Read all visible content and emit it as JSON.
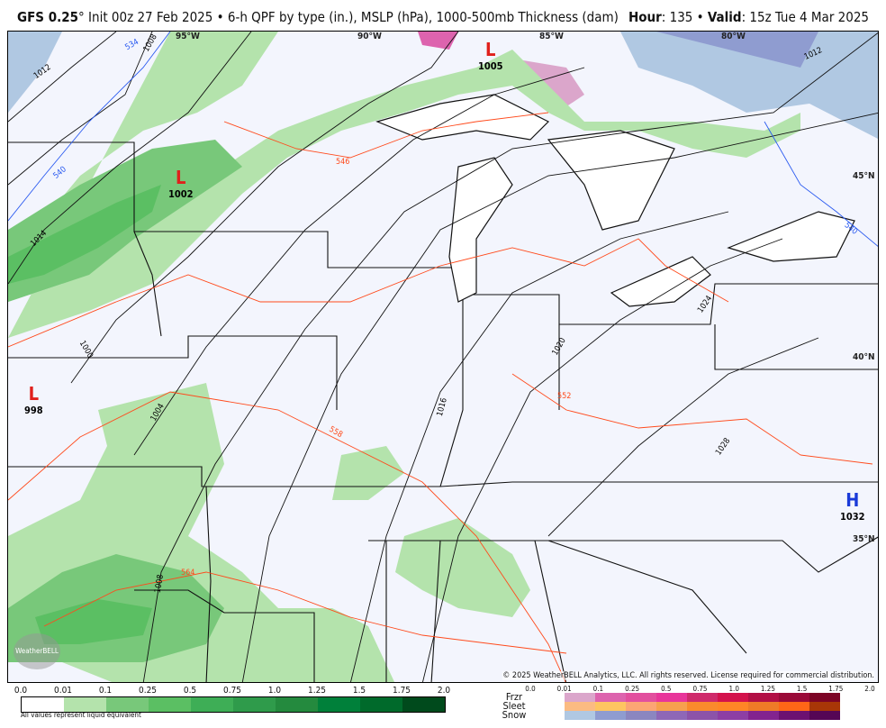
{
  "header": {
    "model": "GFS 0.25",
    "degree": "°",
    "init": " Init 00z 27 Feb 2025 • 6-h QPF by type (in.), MSLP (hPa), 1000-500mb Thickness (dam)",
    "hour_label": "Hour",
    "hour": ": 135 • ",
    "valid_label": "Valid",
    "valid": ": 15z Tue 4 Mar 2025"
  },
  "map": {
    "copyright": "© 2025 WeatherBELL Analytics, LLC. All rights reserved. License required for commercial distribution.",
    "logo": "WeatherBELL",
    "gridlabels": [
      "95°W",
      "90°W",
      "85°W",
      "80°W",
      "45°N",
      "40°N",
      "35°N"
    ],
    "pressure_centers": [
      {
        "type": "L",
        "value": "1005",
        "color": "#e0201c"
      },
      {
        "type": "L",
        "value": "1002",
        "color": "#e0201c"
      },
      {
        "type": "L",
        "value": "998",
        "color": "#e0201c"
      },
      {
        "type": "H",
        "value": "1032",
        "color": "#1a3ad8"
      }
    ],
    "isobar_labels": [
      "1012",
      "1008",
      "1014",
      "1000",
      "1004",
      "1008",
      "1016",
      "1020",
      "1024",
      "1028",
      "1012"
    ],
    "thickness_labels": [
      "534",
      "540",
      "546",
      "552",
      "558",
      "564",
      "540"
    ]
  },
  "legend": {
    "rain_ticks": [
      "0.0",
      "0.01",
      "0.1",
      "0.25",
      "0.5",
      "0.75",
      "1.0",
      "1.25",
      "1.5",
      "1.75",
      "2.0"
    ],
    "rain_colors": [
      "#ffffff",
      "#b4e3ac",
      "#78c87a",
      "#5bbf63",
      "#3eae56",
      "#2f9b4b",
      "#248a3e",
      "#00803a",
      "#006a2b",
      "#004a1c"
    ],
    "note": "All values represent liquid equivalent",
    "ptype_ticks": [
      "0.0",
      "0.01",
      "0.1",
      "0.25",
      "0.5",
      "0.75",
      "1.0",
      "1.25",
      "1.5",
      "1.75",
      "2.0"
    ],
    "types": [
      {
        "label": "Frzr",
        "colors": [
          "#dba6cb",
          "#dd63ae",
          "#e24f9e",
          "#e8359a",
          "#cf2a6b",
          "#d3124c",
          "#b20f45",
          "#9a0a38",
          "#7c0425"
        ]
      },
      {
        "label": "Sleet",
        "colors": [
          "#fbbb82",
          "#fec561",
          "#fca574",
          "#f7a04e",
          "#fa8a2c",
          "#ff8626",
          "#ef7b27",
          "#ff6617",
          "#a83607"
        ]
      },
      {
        "label": "Snow",
        "colors": [
          "#b0c8e2",
          "#8f9cd0",
          "#8b86c0",
          "#8e67b7",
          "#8c53a9",
          "#8d3ea4",
          "#82238f",
          "#6c1171",
          "#550655"
        ]
      }
    ]
  }
}
